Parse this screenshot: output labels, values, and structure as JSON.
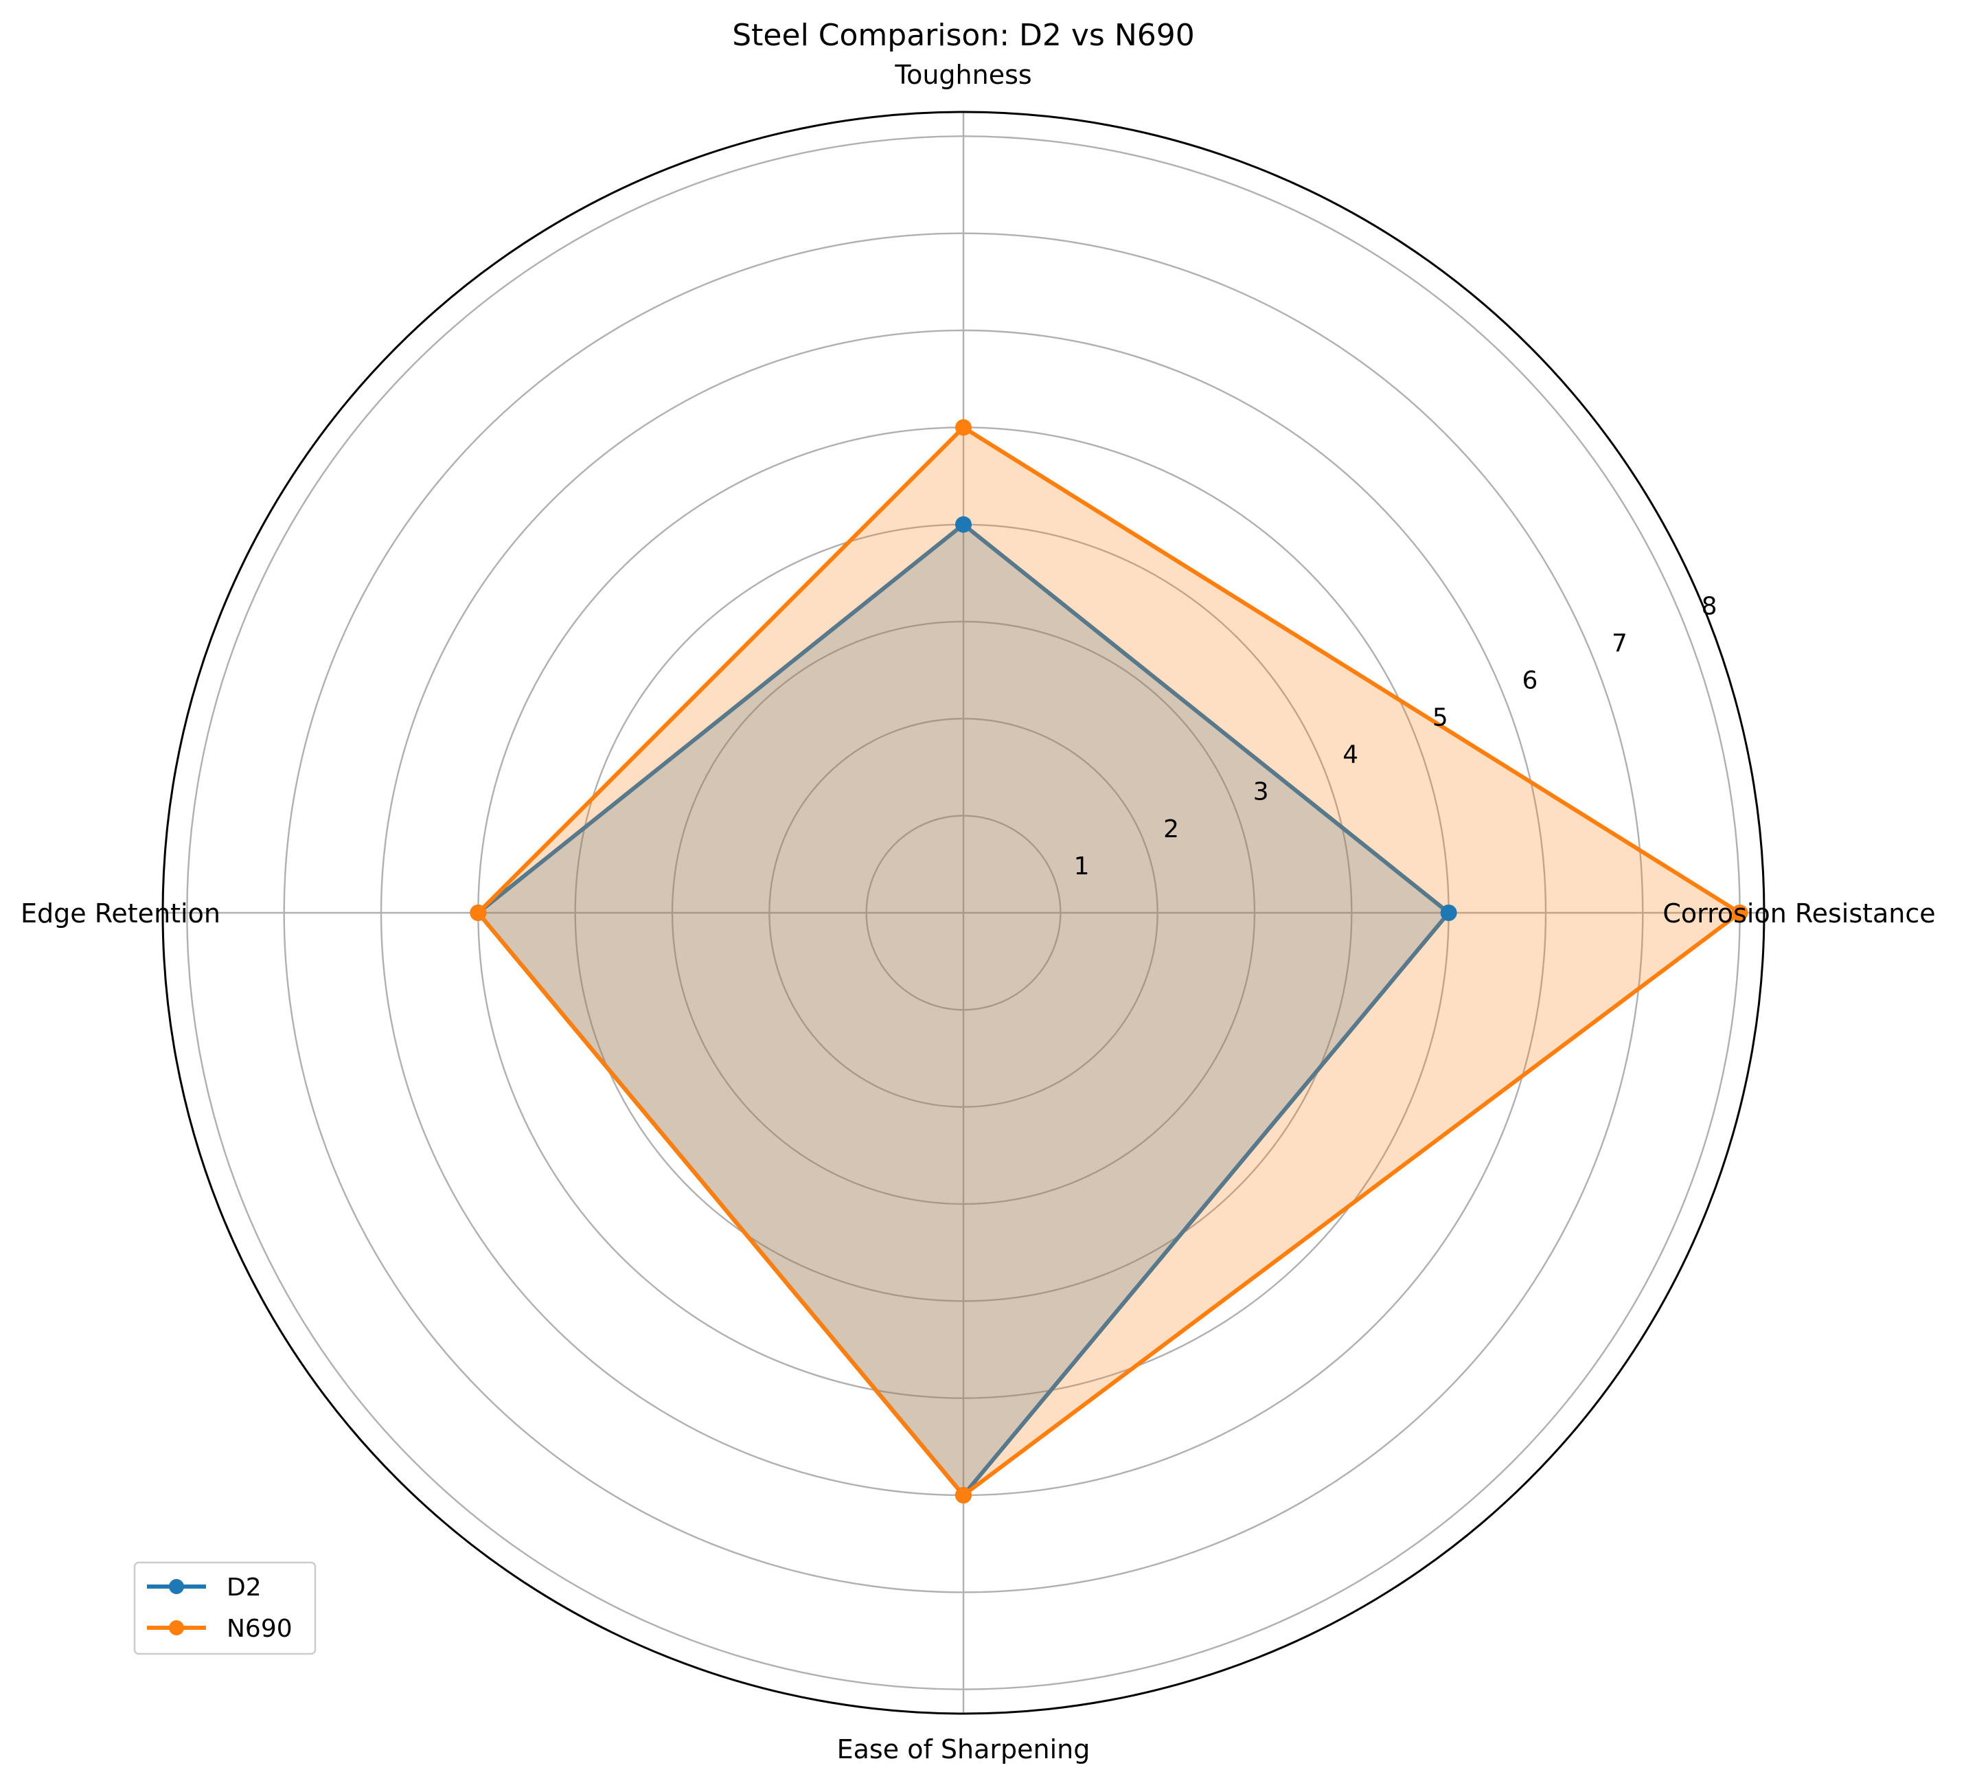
{
  "chart_data": {
    "type": "radar",
    "title": "Steel Comparison: D2 vs N690",
    "categories": [
      "Corrosion Resistance",
      "Toughness",
      "Edge Retention",
      "Ease of Sharpening"
    ],
    "r_ticks": [
      "1",
      "2",
      "3",
      "4",
      "5",
      "6",
      "7",
      "8"
    ],
    "r_tick_values": [
      1,
      2,
      3,
      4,
      5,
      6,
      7,
      8
    ],
    "rlim": [
      0,
      8.25
    ],
    "grid": true,
    "legend_position": "lower-left",
    "series": [
      {
        "name": "D2",
        "values": [
          5,
          4,
          5,
          6
        ],
        "color": "#1f77b4"
      },
      {
        "name": "N690",
        "values": [
          8,
          5,
          5,
          6
        ],
        "color": "#ff7f0e"
      }
    ]
  }
}
